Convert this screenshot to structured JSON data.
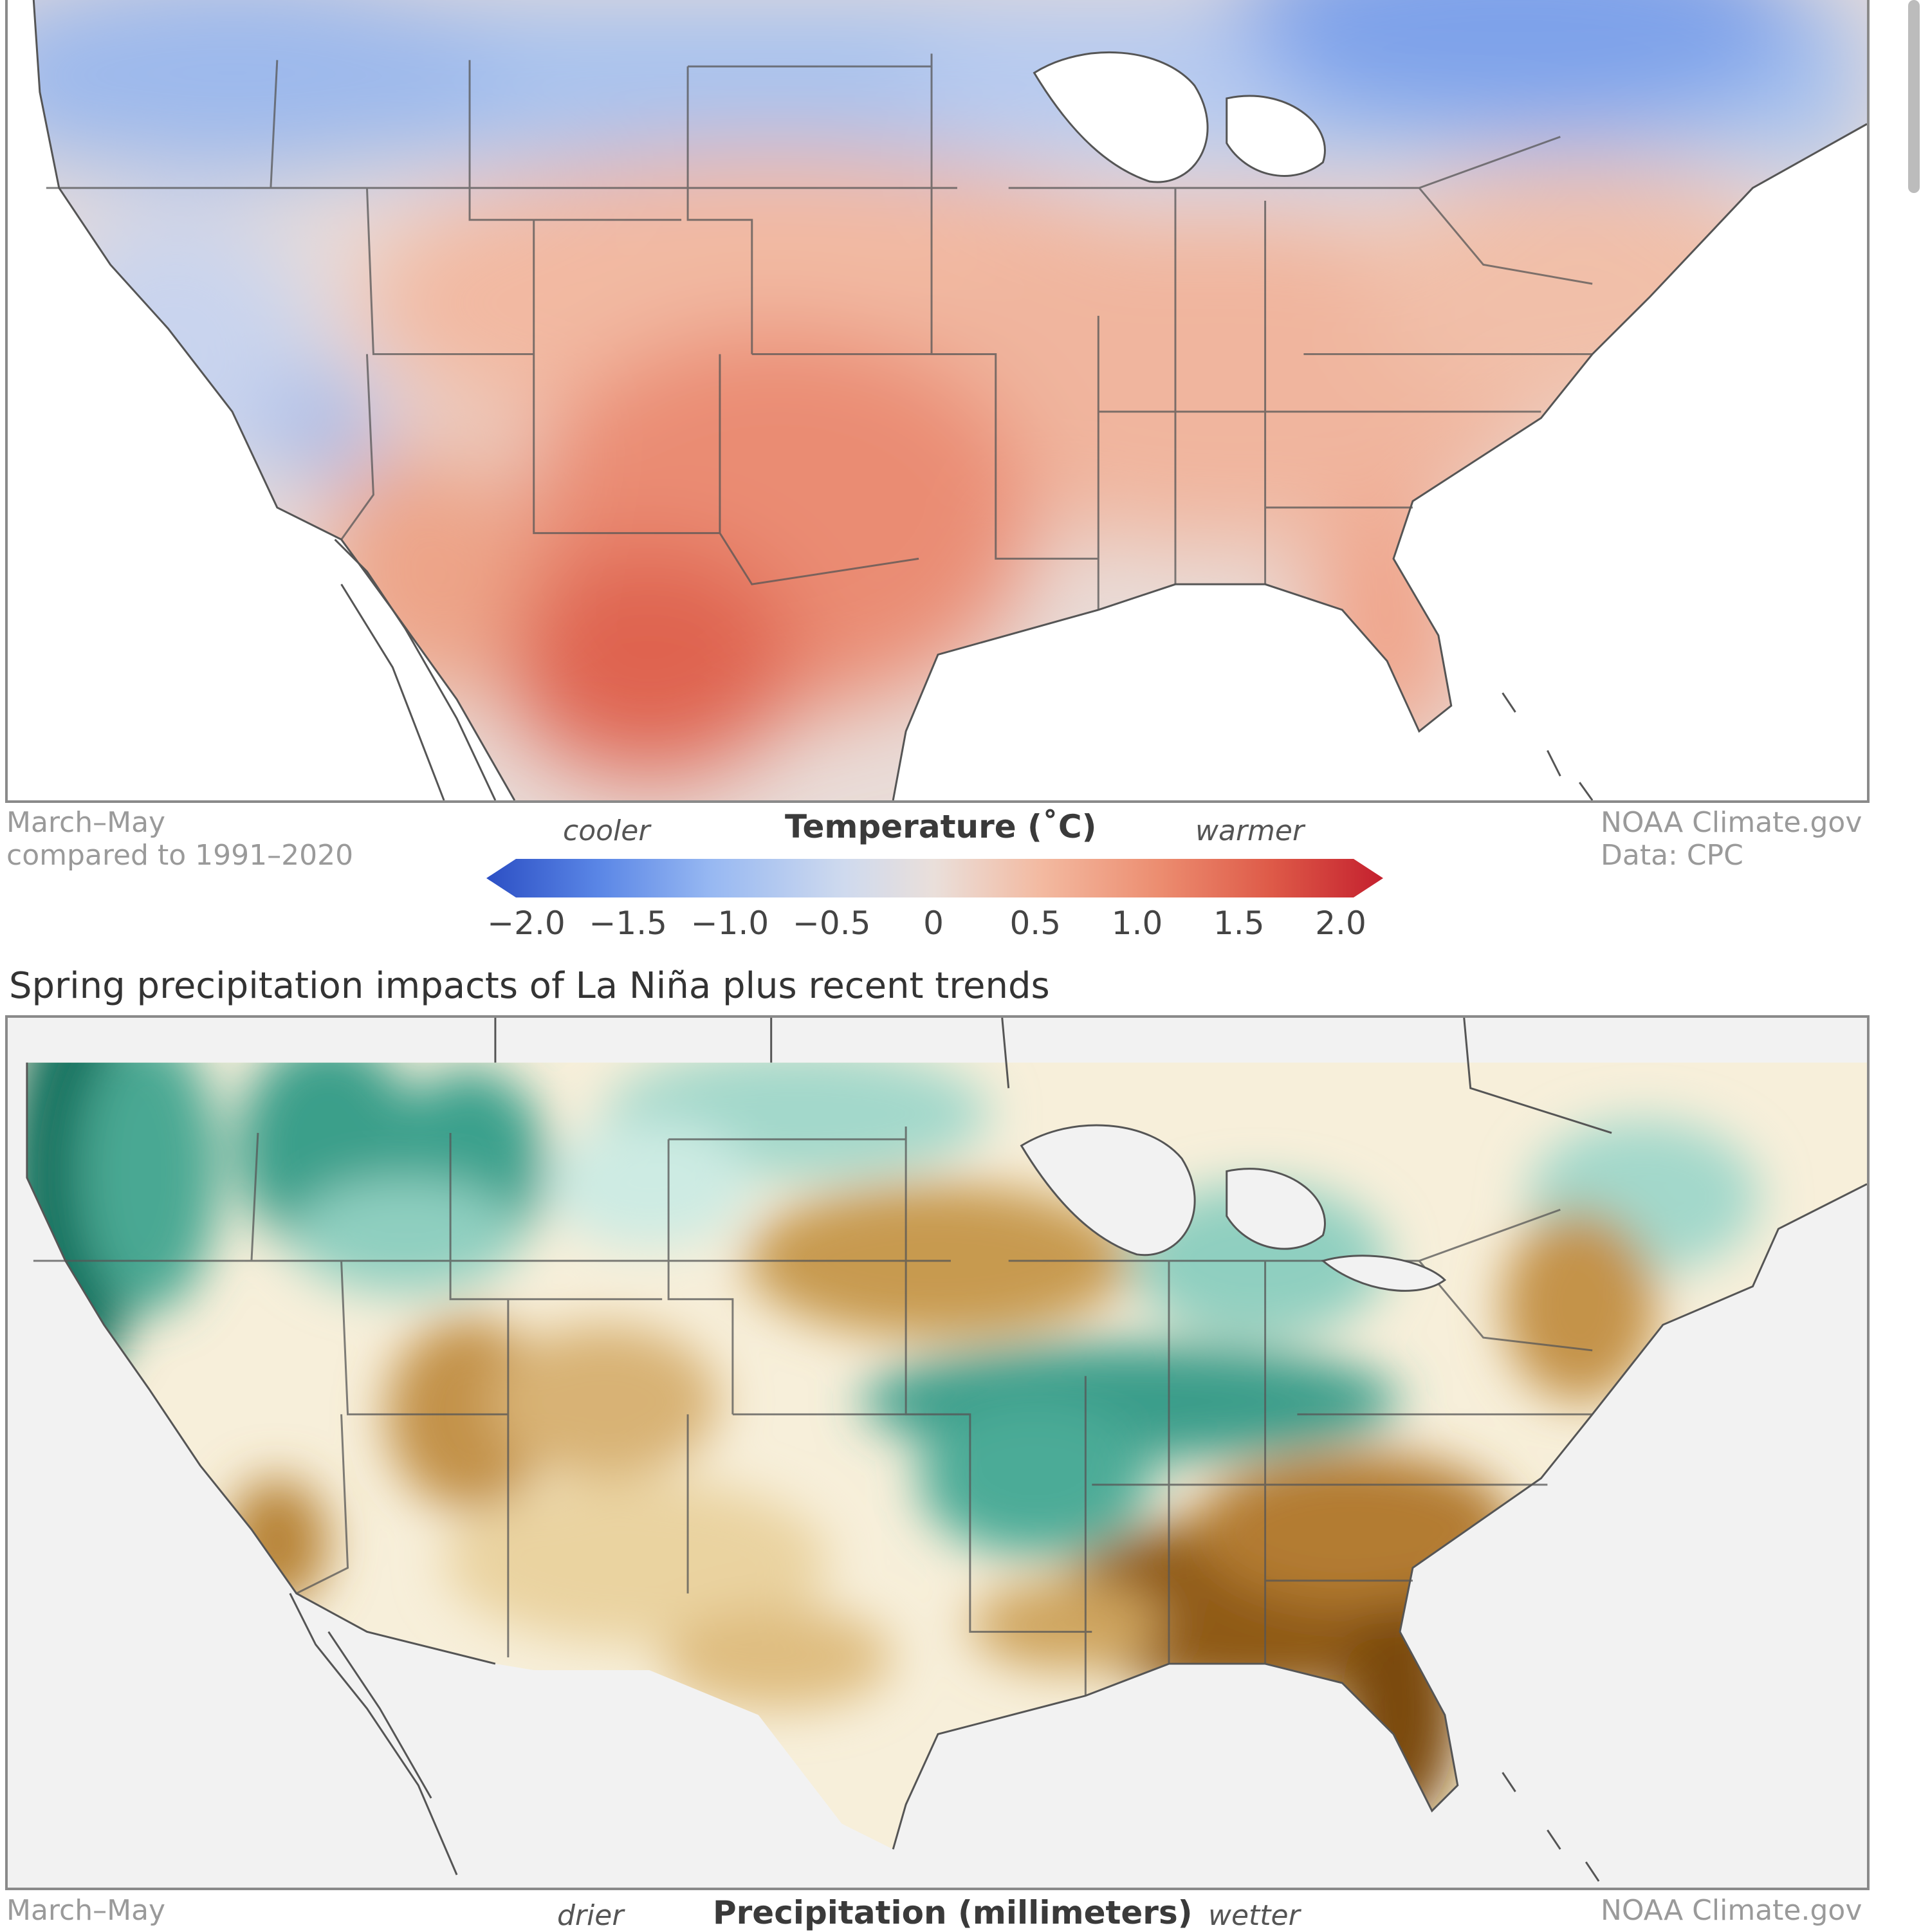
{
  "temperature_map": {
    "period_line1": "March–May",
    "period_line2": "compared to 1991–2020",
    "credit_line1": "NOAA Climate.gov",
    "credit_line2": "Data: CPC",
    "colorbar": {
      "title": "Temperature (˚C)",
      "low_word": "cooler",
      "high_word": "warmer",
      "ticks": [
        "−2.0",
        "−1.5",
        "−1.0",
        "−0.5",
        "0",
        "0.5",
        "1.0",
        "1.5",
        "2.0"
      ],
      "colors": [
        "#2c4fc4",
        "#5a86e6",
        "#97b8f2",
        "#cfdaee",
        "#eadfda",
        "#f3b9a0",
        "#ec8d70",
        "#de5a48",
        "#c4202e"
      ]
    }
  },
  "precipitation_map": {
    "title": "Spring precipitation impacts of La Niña plus recent trends",
    "period_line1": "March–May",
    "credit_line1": "NOAA Climate.gov",
    "colorbar": {
      "title": "Precipitation (millimeters)",
      "low_word": "drier",
      "high_word": "wetter"
    },
    "colors": {
      "dry_dark": "#6e4206",
      "dry_mid": "#b9853a",
      "dry_light": "#ecd9ad",
      "wet_light": "#c7e9e0",
      "wet_mid": "#56b5a3",
      "wet_dark": "#08614f"
    }
  }
}
